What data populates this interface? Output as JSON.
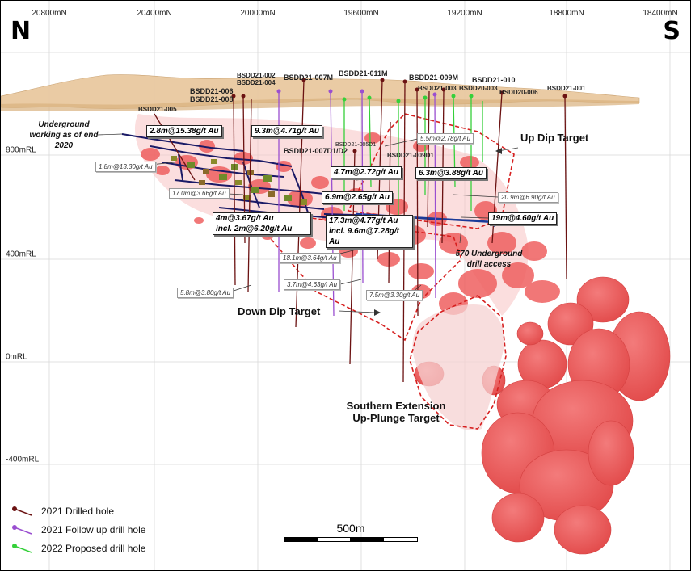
{
  "compass": {
    "north": "N",
    "south": "S"
  },
  "grid": {
    "eastings": [
      {
        "label": "20800mN",
        "x": 20800
      },
      {
        "label": "20400mN",
        "x": 20400
      },
      {
        "label": "20000mN",
        "x": 20000
      },
      {
        "label": "19600mN",
        "x": 19600
      },
      {
        "label": "19200mN",
        "x": 19200
      },
      {
        "label": "18800mN",
        "x": 18800
      },
      {
        "label": "18400mN",
        "x": 18400
      }
    ],
    "elevations": [
      {
        "label": "800mRL",
        "rl": 800
      },
      {
        "label": "400mRL",
        "rl": 400
      },
      {
        "label": "0mRL",
        "rl": 0
      },
      {
        "label": "-400mRL",
        "rl": -400
      }
    ]
  },
  "holes": {
    "BSDD21-002": "BSDD21-002",
    "BSDD21-004": "BSDD21-004",
    "BSDD21-006": "BSDD21-006",
    "BSDD21-008": "BSDD21-008",
    "BSDD21-005": "BSDD21-005",
    "BSDD21-007M": "BSDD21-007M",
    "BSDD21-011M": "BSDD21-011M",
    "BSDD21-009M": "BSDD21-009M",
    "BSDD21-003": "BSDD21-003",
    "BSDD21-010": "BSDD21-010",
    "BSDD20-003": "BSDD20-003",
    "BSDD20-006": "BSDD20-006",
    "BSDD21-001": "BSDD21-001",
    "BSDD21-007D1D2": "BSDD21-007D1/D2",
    "BSDD21-009D1": "BSDD21-009D1",
    "BSDD21-005D1": "BSDD21-005D1"
  },
  "intercepts": {
    "i1": "2.8m@15.38g/t Au",
    "i2": "9.3m@4.71g/t Au",
    "i3": "1.8m@13.30g/t Au",
    "i4": "4.7m@2.72g/t Au",
    "i5": "6.3m@3.88g/t Au",
    "i6": "5.5m@2.78g/t Au",
    "i7": "17.0m@3.66g/t Au",
    "i8": "6.9m@2.65g/t Au",
    "i9": "20.9m@6.90g/t Au",
    "i10a": "4m@3.67g/t Au",
    "i10b": "incl. 2m@6.20g/t Au",
    "i11a": "17.3m@4.77g/t Au",
    "i11b": "incl. 9.6m@7.28g/t Au",
    "i12": "19m@4.60g/t Au",
    "i13": "18.1m@3.64g/t Au",
    "i14": "5.8m@3.80g/t Au",
    "i15": "3.7m@4.63g/t Au",
    "i16": "7.5m@3.30g/t Au"
  },
  "notes": {
    "underground": "Underground working as of end 2020",
    "access": "570 Underground drill access"
  },
  "targets": {
    "up_dip": "Up Dip Target",
    "down_dip": "Down Dip Target",
    "southern_line1": "Southern Extension",
    "southern_line2": "Up-Plunge Target"
  },
  "legend": [
    {
      "label": "2021 Drilled hole",
      "color": "#6b1212"
    },
    {
      "label": "2021 Follow up drill hole",
      "color": "#9a4fd0"
    },
    {
      "label": "2022 Proposed drill hole",
      "color": "#35d03a"
    }
  ],
  "colors": {
    "orebody": "#ef5a5a",
    "orebody_light": "#f7a6a6",
    "topography": "#e9c9a0",
    "underground_workings": "#1a1a66",
    "target_outline": "#d61f1f",
    "drilled": "#6b1212",
    "follow_up": "#9a4fd0",
    "proposed": "#35d03a"
  },
  "scale_bar": {
    "label": "500m"
  }
}
